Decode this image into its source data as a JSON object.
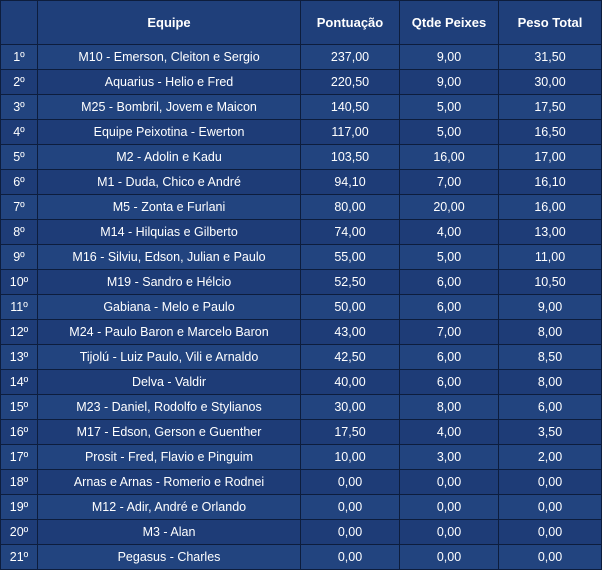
{
  "table": {
    "headers": {
      "rank": "",
      "team": "Equipe",
      "score": "Pontuação",
      "fish": "Qtde Peixes",
      "weight": "Peso Total"
    },
    "rows": [
      {
        "rank": "1º",
        "team": "M10 - Emerson, Cleiton e Sergio",
        "score": "237,00",
        "fish": "9,00",
        "weight": "31,50"
      },
      {
        "rank": "2º",
        "team": "Aquarius - Helio e Fred",
        "score": "220,50",
        "fish": "9,00",
        "weight": "30,00"
      },
      {
        "rank": "3º",
        "team": "M25 - Bombril, Jovem e Maicon",
        "score": "140,50",
        "fish": "5,00",
        "weight": "17,50"
      },
      {
        "rank": "4º",
        "team": "Equipe Peixotina - Ewerton",
        "score": "117,00",
        "fish": "5,00",
        "weight": "16,50"
      },
      {
        "rank": "5º",
        "team": "M2 - Adolin e Kadu",
        "score": "103,50",
        "fish": "16,00",
        "weight": "17,00"
      },
      {
        "rank": "6º",
        "team": "M1 - Duda, Chico e André",
        "score": "94,10",
        "fish": "7,00",
        "weight": "16,10"
      },
      {
        "rank": "7º",
        "team": "M5 - Zonta e Furlani",
        "score": "80,00",
        "fish": "20,00",
        "weight": "16,00"
      },
      {
        "rank": "8º",
        "team": "M14 - Hilquias e Gilberto",
        "score": "74,00",
        "fish": "4,00",
        "weight": "13,00"
      },
      {
        "rank": "9º",
        "team": "M16 - Silviu, Edson, Julian e Paulo",
        "score": "55,00",
        "fish": "5,00",
        "weight": "11,00"
      },
      {
        "rank": "10º",
        "team": "M19 - Sandro e Hélcio",
        "score": "52,50",
        "fish": "6,00",
        "weight": "10,50"
      },
      {
        "rank": "11º",
        "team": "Gabiana - Melo e Paulo",
        "score": "50,00",
        "fish": "6,00",
        "weight": "9,00"
      },
      {
        "rank": "12º",
        "team": "M24 - Paulo Baron e Marcelo Baron",
        "score": "43,00",
        "fish": "7,00",
        "weight": "8,00"
      },
      {
        "rank": "13º",
        "team": "Tijolú - Luiz Paulo, Vili e Arnaldo",
        "score": "42,50",
        "fish": "6,00",
        "weight": "8,50"
      },
      {
        "rank": "14º",
        "team": "Delva - Valdir",
        "score": "40,00",
        "fish": "6,00",
        "weight": "8,00"
      },
      {
        "rank": "15º",
        "team": "M23 - Daniel, Rodolfo e Stylianos",
        "score": "30,00",
        "fish": "8,00",
        "weight": "6,00"
      },
      {
        "rank": "16º",
        "team": "M17 - Edson, Gerson e Guenther",
        "score": "17,50",
        "fish": "4,00",
        "weight": "3,50"
      },
      {
        "rank": "17º",
        "team": "Prosit - Fred, Flavio e Pinguim",
        "score": "10,00",
        "fish": "3,00",
        "weight": "2,00"
      },
      {
        "rank": "18º",
        "team": "Arnas e Arnas - Romerio e Rodnei",
        "score": "0,00",
        "fish": "0,00",
        "weight": "0,00"
      },
      {
        "rank": "19º",
        "team": "M12 - Adir, André e Orlando",
        "score": "0,00",
        "fish": "0,00",
        "weight": "0,00"
      },
      {
        "rank": "20º",
        "team": "M3 - Alan",
        "score": "0,00",
        "fish": "0,00",
        "weight": "0,00"
      },
      {
        "rank": "21º",
        "team": "Pegasus - Charles",
        "score": "0,00",
        "fish": "0,00",
        "weight": "0,00"
      }
    ]
  },
  "colors": {
    "cell_background": "#1f3f7a",
    "border": "#0d1d3d",
    "text": "#ffffff"
  }
}
